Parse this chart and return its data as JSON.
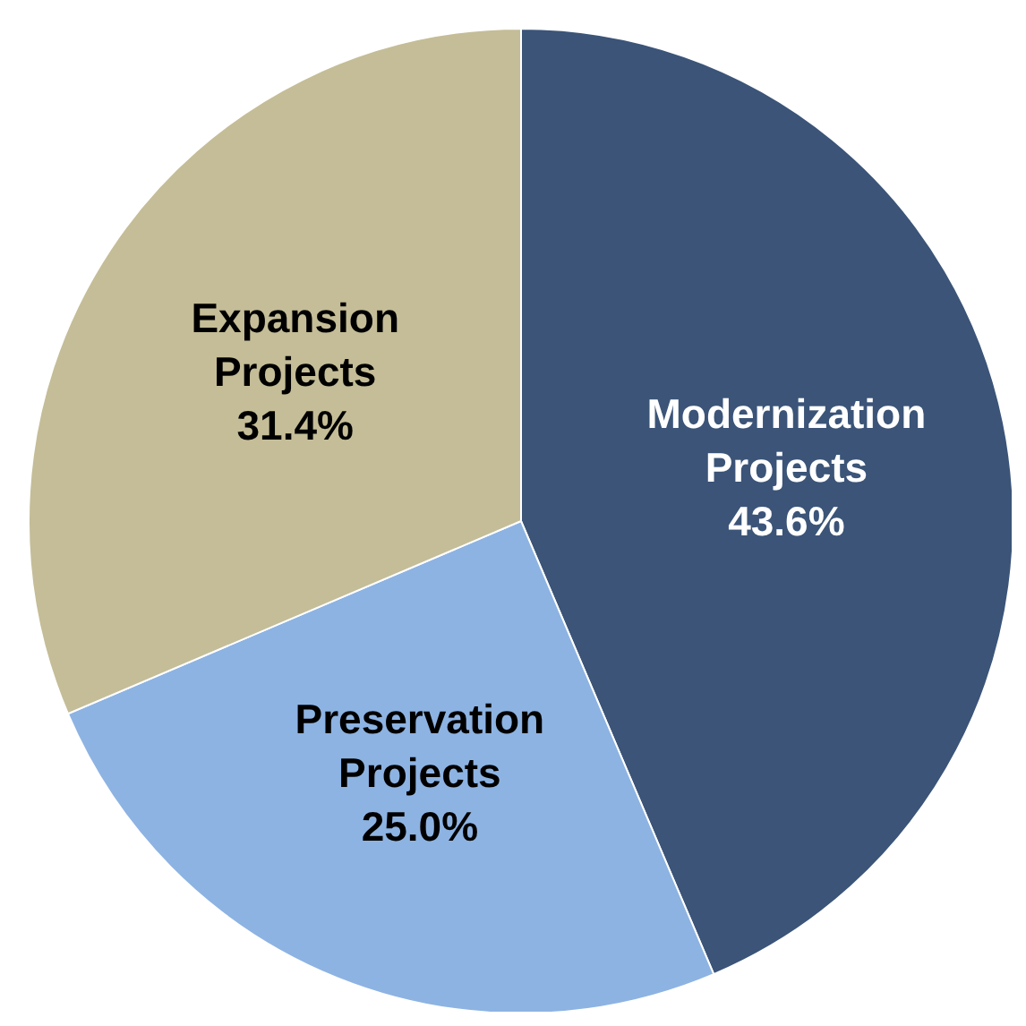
{
  "chart_data": {
    "type": "pie",
    "categories": [
      "Modernization Projects",
      "Preservation Projects",
      "Expansion Projects"
    ],
    "values": [
      43.6,
      25.0,
      31.4
    ],
    "colors": [
      "#3b5478",
      "#8db3e2",
      "#c4bd97"
    ],
    "value_labels": [
      "43.6%",
      "25.0%",
      "31.4%"
    ],
    "legend": false
  }
}
